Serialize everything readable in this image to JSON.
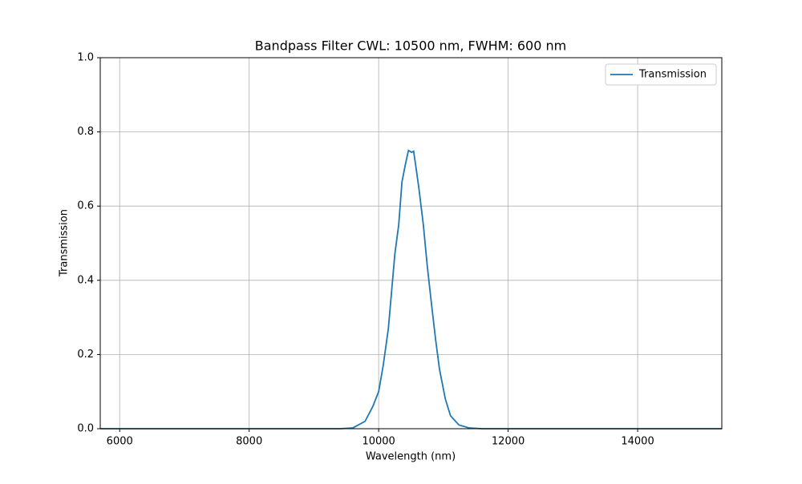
{
  "chart_data": {
    "type": "line",
    "title": "Bandpass Filter CWL: 10500 nm, FWHM: 600 nm",
    "x_label": "Wavelength (nm)",
    "y_label": "Transmission",
    "x": [
      5700,
      6500,
      7500,
      8500,
      9000,
      9400,
      9600,
      9790,
      9910,
      10000,
      10070,
      10150,
      10210,
      10250,
      10310,
      10360,
      10410,
      10460,
      10510,
      10540,
      10580,
      10620,
      10690,
      10750,
      10820,
      10880,
      10940,
      11030,
      11110,
      11240,
      11400,
      11600,
      12000,
      13000,
      14000,
      15300
    ],
    "series": [
      {
        "name": "Transmission",
        "color": "#1f77b4",
        "values": [
          0,
          0,
          0,
          0,
          0,
          0,
          0.002,
          0.02,
          0.06,
          0.1,
          0.17,
          0.27,
          0.39,
          0.47,
          0.55,
          0.665,
          0.71,
          0.75,
          0.745,
          0.748,
          0.7,
          0.65,
          0.55,
          0.44,
          0.33,
          0.24,
          0.16,
          0.08,
          0.035,
          0.01,
          0.002,
          0,
          0,
          0,
          0,
          0
        ]
      }
    ],
    "xlim": [
      5700,
      15300
    ],
    "xticks": [
      6000,
      8000,
      10000,
      12000,
      14000
    ],
    "ylim": [
      0,
      1
    ],
    "yticks": [
      {
        "value": 0,
        "label": "0.0"
      },
      0.2,
      0.4,
      0.6,
      0.8,
      {
        "value": 1,
        "label": "1.0"
      }
    ],
    "grid": true,
    "legend": "upper right"
  }
}
